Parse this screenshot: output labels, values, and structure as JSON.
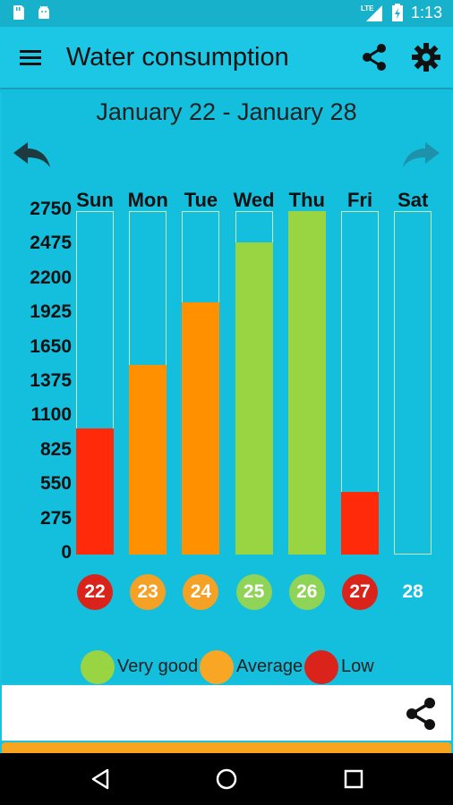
{
  "status_bar": {
    "time": "1:13",
    "left_icons": [
      "sd-card-icon",
      "android-icon"
    ],
    "right_icons": [
      "lte-signal-icon",
      "battery-charging-icon"
    ],
    "lte_label": "LTE"
  },
  "app_bar": {
    "title": "Water consumption",
    "icons": [
      "menu-icon",
      "share-icon",
      "settings-gear-icon"
    ]
  },
  "week": {
    "range": "January 22 - January 28"
  },
  "chart_data": {
    "type": "bar",
    "categories": [
      "Sun",
      "Mon",
      "Tue",
      "Wed",
      "Thu",
      "Fri",
      "Sat"
    ],
    "values": [
      1010,
      1520,
      2020,
      2500,
      2750,
      500,
      0
    ],
    "colors": [
      "#FF2A0A",
      "#FF9000",
      "#FF9000",
      "#99D442",
      "#99D442",
      "#FF2A0A",
      null
    ],
    "ylim": [
      0,
      2750
    ],
    "yticks": [
      2750,
      2475,
      2200,
      1925,
      1650,
      1375,
      1100,
      825,
      550,
      275,
      0
    ],
    "ylabel": "",
    "xlabel": "",
    "title": ""
  },
  "dates": [
    {
      "label": "22",
      "color": "#D9231B"
    },
    {
      "label": "23",
      "color": "#F4A126"
    },
    {
      "label": "24",
      "color": "#F4A126"
    },
    {
      "label": "25",
      "color": "#8FD456"
    },
    {
      "label": "26",
      "color": "#8FD456"
    },
    {
      "label": "27",
      "color": "#D9231B"
    },
    {
      "label": "28",
      "color": null
    }
  ],
  "legend": [
    {
      "label": "Very good",
      "color": "#99D442"
    },
    {
      "label": "Average",
      "color": "#F8A623"
    },
    {
      "label": "Low",
      "color": "#D9231B"
    }
  ],
  "colors": {
    "background": "#19C2E0",
    "app_bar": "#1CC7E6",
    "accent_orange": "#F7A51F"
  },
  "nav_icons": [
    "back-triangle-icon",
    "home-circle-icon",
    "recents-square-icon"
  ]
}
